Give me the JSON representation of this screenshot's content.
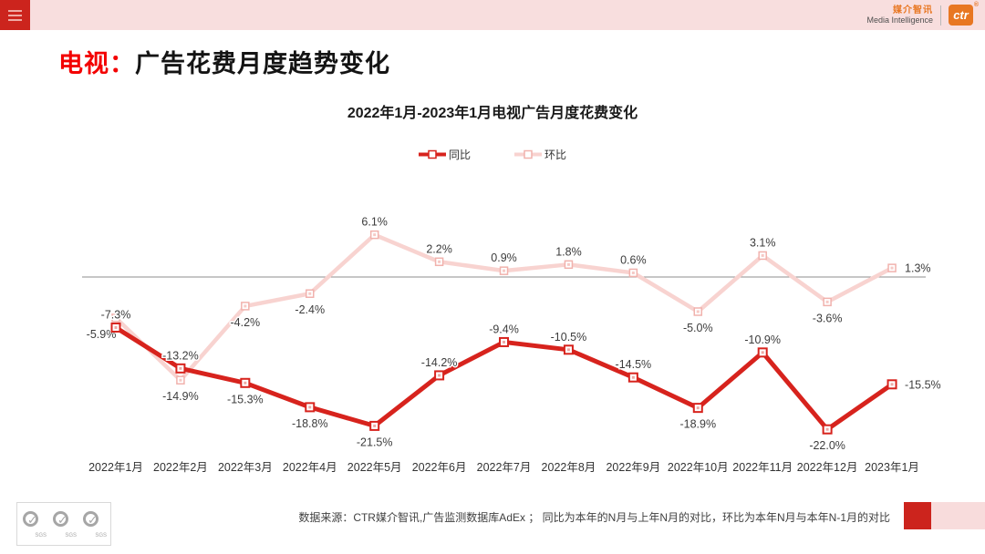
{
  "header": {
    "brand": {
      "cn": "媒介智讯",
      "en": "Media Intelligence",
      "logo": "ctr",
      "registered": "®"
    }
  },
  "page_title": {
    "highlight": "电视：",
    "text": "广告花费月度趋势变化"
  },
  "chart_data": {
    "type": "line",
    "title": "2022年1月-2023年1月电视广告月度花费变化",
    "categories": [
      "2022年1月",
      "2022年2月",
      "2022年3月",
      "2022年4月",
      "2022年5月",
      "2022年6月",
      "2022年7月",
      "2022年8月",
      "2022年9月",
      "2022年10月",
      "2022年11月",
      "2022年12月",
      "2023年1月"
    ],
    "unit": "%",
    "baseline": 0,
    "grid": "zero-line-only",
    "legend_position": "top",
    "series": [
      {
        "id": "mom",
        "name": "环比",
        "color": "#f8d3d0",
        "marker_border": "#f1b2ad",
        "values": [
          -5.9,
          -14.9,
          -4.2,
          -2.4,
          6.1,
          2.2,
          0.9,
          1.8,
          0.6,
          -5.0,
          3.1,
          -3.6,
          1.3
        ],
        "label_sides": [
          "below-left",
          "below",
          "below",
          "below",
          "above",
          "above",
          "above",
          "above",
          "above",
          "below",
          "above",
          "below",
          "right"
        ]
      },
      {
        "id": "yoy",
        "name": "同比",
        "color": "#d7231d",
        "marker_border": "#d7231d",
        "values": [
          -7.3,
          -13.2,
          -15.3,
          -18.8,
          -21.5,
          -14.2,
          -9.4,
          -10.5,
          -14.5,
          -18.9,
          -10.9,
          -22.0,
          -15.5
        ],
        "label_sides": [
          "above",
          "above",
          "below",
          "below",
          "below",
          "above",
          "above",
          "above",
          "above",
          "below",
          "above",
          "below",
          "right"
        ]
      }
    ]
  },
  "footer": {
    "source": "数据来源：CTR媒介智讯,广告监测数据库AdEx ；  同比为本年的N月与上年N月的对比，环比为本年N月与本年N-1月的对比",
    "sgs_label": "SGS"
  },
  "colors": {
    "accent_red": "#cc241d",
    "bar_pink": "#f8dede",
    "brand_orange": "#e87722"
  }
}
